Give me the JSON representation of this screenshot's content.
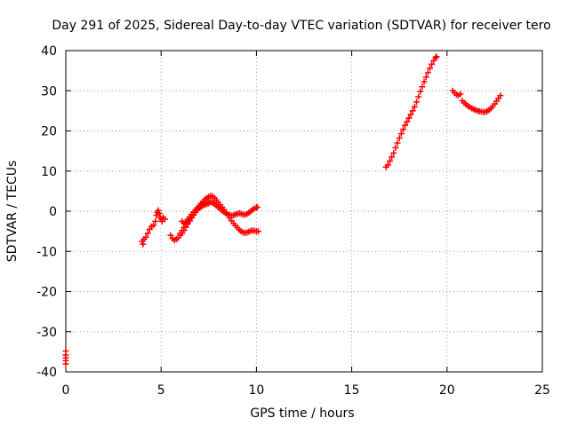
{
  "chart_data": {
    "type": "scatter",
    "title": "Day 291 of 2025, Sidereal Day-to-day VTEC variation (SDTVAR) for receiver tero",
    "xlabel": "GPS time / hours",
    "ylabel": "SDTVAR / TECUs",
    "xlim": [
      0,
      25
    ],
    "ylim": [
      -40,
      40
    ],
    "xticks": [
      0,
      5,
      10,
      15,
      20,
      25
    ],
    "yticks": [
      -40,
      -30,
      -20,
      -10,
      0,
      10,
      20,
      30,
      40
    ],
    "grid": true,
    "marker": "plus",
    "color": "#ff0000",
    "series": [
      {
        "values": [
          [
            0.0,
            -34.8
          ],
          [
            0.0,
            -35.8
          ],
          [
            0.0,
            -36.5
          ],
          [
            0.0,
            -37.2
          ],
          [
            0.0,
            -38.0
          ],
          [
            4.0,
            -7.5
          ],
          [
            4.05,
            -8.2
          ],
          [
            4.1,
            -7.0
          ],
          [
            4.2,
            -6.5
          ],
          [
            4.3,
            -5.5
          ],
          [
            4.4,
            -4.5
          ],
          [
            4.5,
            -3.8
          ],
          [
            4.6,
            -3.5
          ],
          [
            4.7,
            -2.5
          ],
          [
            4.75,
            -1.0
          ],
          [
            4.8,
            -0.3
          ],
          [
            4.85,
            0.2
          ],
          [
            4.9,
            -0.5
          ],
          [
            4.95,
            -1.5
          ],
          [
            5.0,
            -2.0
          ],
          [
            5.05,
            -2.5
          ],
          [
            5.1,
            -1.5
          ],
          [
            5.2,
            -2.0
          ],
          [
            5.5,
            -6.0
          ],
          [
            5.6,
            -6.8
          ],
          [
            5.7,
            -7.2
          ],
          [
            5.8,
            -7.0
          ],
          [
            5.9,
            -6.6
          ],
          [
            6.0,
            -6.0
          ],
          [
            6.1,
            -5.5
          ],
          [
            6.2,
            -4.8
          ],
          [
            6.3,
            -4.0
          ],
          [
            6.4,
            -3.2
          ],
          [
            6.5,
            -2.4
          ],
          [
            6.6,
            -1.6
          ],
          [
            6.7,
            -0.8
          ],
          [
            6.8,
            -0.1
          ],
          [
            6.9,
            0.6
          ],
          [
            7.0,
            1.3
          ],
          [
            7.1,
            1.9
          ],
          [
            7.2,
            2.4
          ],
          [
            7.3,
            2.9
          ],
          [
            7.4,
            3.3
          ],
          [
            7.5,
            3.6
          ],
          [
            7.6,
            3.8
          ],
          [
            7.7,
            3.7
          ],
          [
            7.8,
            3.3
          ],
          [
            7.9,
            2.8
          ],
          [
            8.0,
            2.2
          ],
          [
            8.1,
            1.6
          ],
          [
            8.2,
            1.0
          ],
          [
            8.3,
            0.4
          ],
          [
            8.4,
            -0.3
          ],
          [
            8.5,
            -1.0
          ],
          [
            8.6,
            -1.7
          ],
          [
            8.7,
            -2.4
          ],
          [
            8.8,
            -3.0
          ],
          [
            8.9,
            -3.6
          ],
          [
            9.0,
            -4.1
          ],
          [
            9.1,
            -4.6
          ],
          [
            9.2,
            -5.0
          ],
          [
            9.3,
            -5.3
          ],
          [
            9.4,
            -5.4
          ],
          [
            9.5,
            -5.3
          ],
          [
            9.6,
            -5.1
          ],
          [
            9.7,
            -4.9
          ],
          [
            9.8,
            -4.8
          ],
          [
            9.9,
            -4.9
          ],
          [
            10.0,
            -5.0
          ],
          [
            10.1,
            -5.0
          ],
          [
            6.1,
            -2.5
          ],
          [
            6.2,
            -3.0
          ],
          [
            6.3,
            -2.6
          ],
          [
            6.4,
            -2.0
          ],
          [
            6.5,
            -1.4
          ],
          [
            6.6,
            -0.8
          ],
          [
            6.7,
            -0.3
          ],
          [
            6.8,
            0.3
          ],
          [
            6.9,
            0.8
          ],
          [
            7.0,
            1.3
          ],
          [
            7.1,
            1.7
          ],
          [
            7.2,
            2.0
          ],
          [
            7.3,
            2.2
          ],
          [
            7.4,
            2.3
          ],
          [
            7.5,
            2.4
          ],
          [
            7.6,
            2.3
          ],
          [
            7.7,
            2.1
          ],
          [
            7.8,
            1.8
          ],
          [
            7.9,
            1.4
          ],
          [
            8.0,
            1.0
          ],
          [
            8.1,
            0.6
          ],
          [
            8.2,
            0.2
          ],
          [
            8.3,
            -0.2
          ],
          [
            8.4,
            -0.5
          ],
          [
            8.5,
            -0.8
          ],
          [
            8.6,
            -1.0
          ],
          [
            8.7,
            -1.1
          ],
          [
            8.8,
            -1.0
          ],
          [
            8.9,
            -0.8
          ],
          [
            9.0,
            -0.6
          ],
          [
            9.1,
            -0.5
          ],
          [
            9.2,
            -0.6
          ],
          [
            9.3,
            -0.8
          ],
          [
            9.4,
            -0.9
          ],
          [
            9.5,
            -0.7
          ],
          [
            9.6,
            -0.4
          ],
          [
            9.7,
            0.0
          ],
          [
            9.8,
            0.4
          ],
          [
            9.9,
            0.7
          ],
          [
            10.0,
            0.9
          ],
          [
            10.05,
            1.0
          ],
          [
            6.0,
            -5.5
          ],
          [
            6.1,
            -4.8
          ],
          [
            6.2,
            -4.0
          ],
          [
            6.3,
            -3.3
          ],
          [
            6.4,
            -2.8
          ],
          [
            6.5,
            -2.3
          ],
          [
            6.6,
            -1.7
          ],
          [
            6.7,
            -1.0
          ],
          [
            6.8,
            -0.3
          ],
          [
            6.9,
            0.3
          ],
          [
            7.0,
            0.8
          ],
          [
            7.1,
            1.1
          ],
          [
            7.2,
            1.4
          ],
          [
            7.3,
            1.6
          ],
          [
            7.4,
            1.8
          ],
          [
            7.5,
            2.0
          ],
          [
            16.8,
            11.0
          ],
          [
            16.9,
            11.5
          ],
          [
            17.0,
            12.5
          ],
          [
            17.1,
            13.5
          ],
          [
            17.2,
            14.5
          ],
          [
            17.3,
            15.8
          ],
          [
            17.4,
            17.0
          ],
          [
            17.5,
            18.2
          ],
          [
            17.6,
            19.3
          ],
          [
            17.7,
            20.4
          ],
          [
            17.8,
            21.4
          ],
          [
            17.9,
            22.3
          ],
          [
            18.0,
            23.2
          ],
          [
            18.1,
            24.1
          ],
          [
            18.2,
            25.0
          ],
          [
            18.3,
            26.0
          ],
          [
            18.4,
            27.2
          ],
          [
            18.5,
            28.5
          ],
          [
            18.6,
            29.8
          ],
          [
            18.7,
            31.0
          ],
          [
            18.8,
            32.2
          ],
          [
            18.9,
            33.4
          ],
          [
            19.0,
            34.5
          ],
          [
            19.1,
            35.6
          ],
          [
            19.2,
            36.6
          ],
          [
            19.3,
            37.5
          ],
          [
            19.4,
            38.2
          ],
          [
            19.45,
            38.5
          ],
          [
            20.3,
            30.0
          ],
          [
            20.4,
            29.5
          ],
          [
            20.5,
            29.0
          ],
          [
            20.6,
            28.8
          ],
          [
            20.7,
            29.2
          ],
          [
            20.8,
            27.5
          ],
          [
            20.9,
            27.0
          ],
          [
            21.0,
            26.6
          ],
          [
            21.1,
            26.2
          ],
          [
            21.2,
            25.9
          ],
          [
            21.3,
            25.6
          ],
          [
            21.4,
            25.4
          ],
          [
            21.5,
            25.2
          ],
          [
            21.6,
            25.0
          ],
          [
            21.7,
            24.9
          ],
          [
            21.8,
            24.8
          ],
          [
            21.9,
            24.7
          ],
          [
            22.0,
            24.7
          ],
          [
            22.1,
            24.9
          ],
          [
            22.2,
            25.2
          ],
          [
            22.3,
            25.6
          ],
          [
            22.4,
            26.1
          ],
          [
            22.5,
            26.7
          ],
          [
            22.6,
            27.4
          ],
          [
            22.7,
            28.1
          ],
          [
            22.8,
            28.8
          ]
        ]
      }
    ]
  }
}
